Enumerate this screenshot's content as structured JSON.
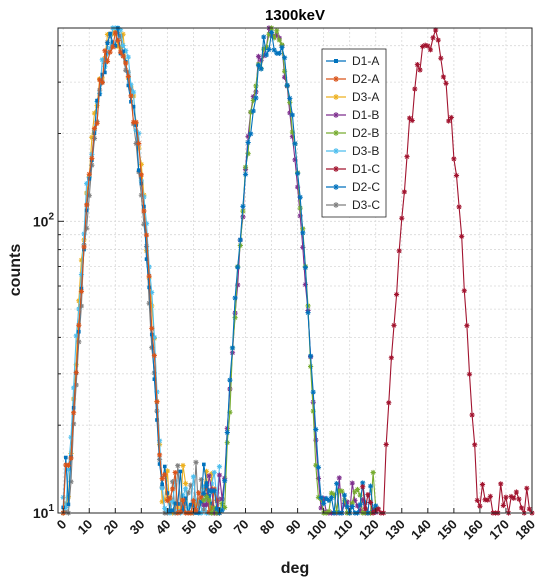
{
  "chart_data": {
    "type": "line",
    "title": "1300keV",
    "xlabel": "deg",
    "ylabel": "counts",
    "xlim": [
      -2,
      180
    ],
    "ylim": [
      10,
      460
    ],
    "y_scale": "log",
    "grid": true,
    "legend_position": "top-right",
    "x_ticks": [
      "0",
      "10",
      "20",
      "30",
      "40",
      "50",
      "60",
      "70",
      "80",
      "90",
      "100",
      "110",
      "120",
      "130",
      "140",
      "150",
      "160",
      "170",
      "180"
    ],
    "y_ticks": [
      {
        "value": 10,
        "base": "10",
        "exp": "1"
      },
      {
        "value": 100,
        "base": "10",
        "exp": "2"
      }
    ],
    "series": [
      {
        "name": "D1-A",
        "color": "#0072bd",
        "marker": "square",
        "peak_x": 20,
        "peak_y": 430,
        "sigma": 6.5
      },
      {
        "name": "D2-A",
        "color": "#d95319",
        "marker": "star",
        "peak_x": 20,
        "peak_y": 425,
        "sigma": 6.6
      },
      {
        "name": "D3-A",
        "color": "#edb120",
        "marker": "star",
        "peak_x": 20,
        "peak_y": 440,
        "sigma": 6.7
      },
      {
        "name": "D1-B",
        "color": "#7e2f8e",
        "marker": "star",
        "peak_x": 80,
        "peak_y": 440,
        "sigma": 6.7
      },
      {
        "name": "D2-B",
        "color": "#77ac30",
        "marker": "star",
        "peak_x": 80,
        "peak_y": 445,
        "sigma": 6.6
      },
      {
        "name": "D3-B",
        "color": "#4dbeee",
        "marker": "star",
        "peak_x": 20,
        "peak_y": 450,
        "sigma": 6.8
      },
      {
        "name": "D1-C",
        "color": "#a2142f",
        "marker": "star",
        "peak_x": 141,
        "peak_y": 435,
        "sigma": 6.6
      },
      {
        "name": "D2-C",
        "color": "#0072bd",
        "marker": "star",
        "peak_x": 80,
        "peak_y": 430,
        "sigma": 6.8
      },
      {
        "name": "D3-C",
        "color": "#7f7f7f",
        "marker": "star",
        "peak_x": 20,
        "peak_y": 420,
        "sigma": 6.5
      }
    ],
    "annotations": []
  }
}
